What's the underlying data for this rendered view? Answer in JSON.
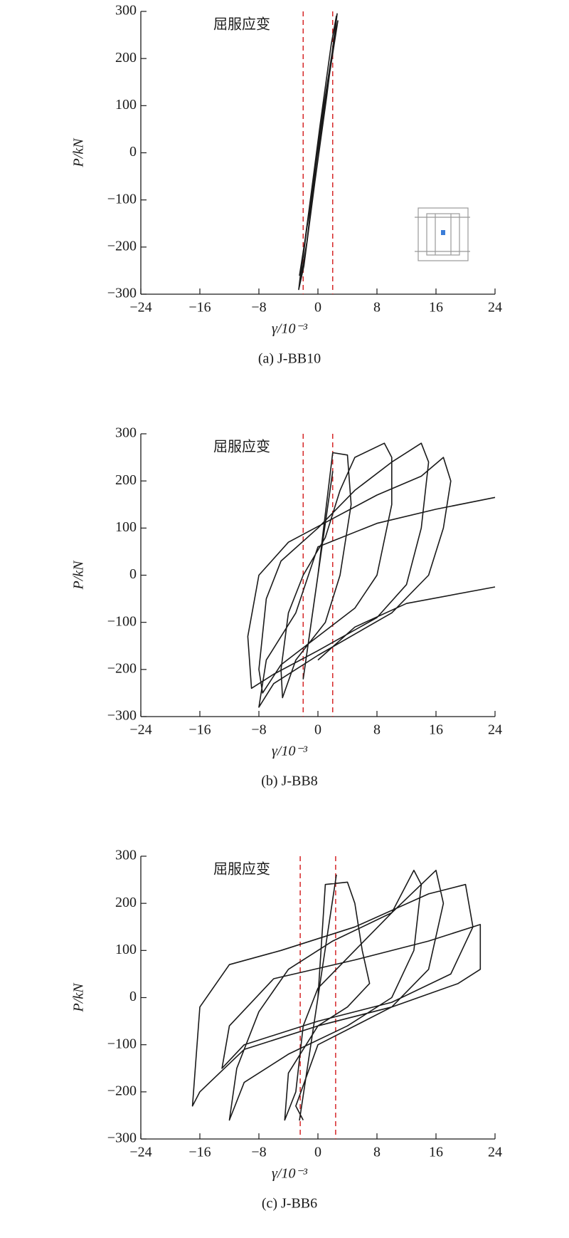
{
  "chart_data": [
    {
      "type": "line",
      "caption": "(a) J-BB10",
      "xlabel": "γ/10⁻³",
      "ylabel": "P/kN",
      "annotation": "屈服应变",
      "yield_lines": [
        -2,
        2
      ],
      "yield_color": "#d62728",
      "xlim": [
        -24,
        24
      ],
      "ylim": [
        -300,
        300
      ],
      "xticks": [
        {
          "value": -24,
          "label": "−24"
        },
        {
          "value": -16,
          "label": "−16"
        },
        {
          "value": -8,
          "label": "−8"
        },
        0,
        8,
        16,
        24
      ],
      "yticks": [
        {
          "value": -300,
          "label": "−300"
        },
        {
          "value": -200,
          "label": "−200"
        },
        {
          "value": -100,
          "label": "−100"
        },
        0,
        100,
        200,
        300
      ],
      "series": [
        {
          "color": "#1a1a1a",
          "x": [
            0,
            1.5,
            2.3,
            2.5,
            1.8,
            0.3,
            -1.2,
            -2.3,
            -2.6,
            -1.9,
            -0.4,
            1.2,
            2.0,
            2.7,
            2.4,
            0.8,
            -0.8,
            -2.2,
            -2.4,
            -1.5,
            0,
            1.6,
            2.6,
            2.2,
            0.5,
            -1.5,
            -2.0,
            -2.5,
            -1.0,
            0.5,
            2.2
          ],
          "values": [
            0,
            160,
            260,
            290,
            230,
            60,
            -120,
            -250,
            -290,
            -240,
            -60,
            120,
            220,
            280,
            250,
            90,
            -80,
            -240,
            -275,
            -190,
            10,
            170,
            295,
            240,
            70,
            -160,
            -220,
            -260,
            -110,
            60,
            240
          ]
        }
      ]
    },
    {
      "type": "line",
      "caption": "(b) J-BB8",
      "xlabel": "γ/10⁻³",
      "ylabel": "P/kN",
      "annotation": "屈服应变",
      "yield_lines": [
        -2,
        2
      ],
      "yield_color": "#d62728",
      "xlim": [
        -24,
        24
      ],
      "ylim": [
        -300,
        300
      ],
      "xticks": [
        {
          "value": -24,
          "label": "−24"
        },
        {
          "value": -16,
          "label": "−16"
        },
        {
          "value": -8,
          "label": "−8"
        },
        0,
        8,
        16,
        24
      ],
      "yticks": [
        {
          "value": -300,
          "label": "−300"
        },
        {
          "value": -200,
          "label": "−200"
        },
        {
          "value": -100,
          "label": "−100"
        },
        0,
        100,
        200,
        300
      ],
      "series": [
        {
          "color": "#1a1a1a",
          "x": [
            0,
            2,
            -2,
            0,
            2,
            4,
            4.5,
            3,
            1,
            -3,
            -4.8,
            -5,
            -4,
            -2,
            1,
            3,
            5,
            9,
            10,
            10,
            8,
            5,
            0,
            -5,
            -7.5,
            -8,
            -7,
            -5,
            0,
            5,
            10,
            14,
            15,
            14,
            12,
            8,
            0,
            -6,
            -9,
            -9.5,
            -8,
            -4,
            2,
            8,
            14,
            17,
            18,
            17,
            15,
            10,
            0,
            -6,
            -8,
            -7,
            -3,
            0,
            8,
            16,
            24,
            null,
            0,
            5,
            12,
            24
          ],
          "values": [
            0,
            220,
            -220,
            0,
            260,
            255,
            150,
            0,
            -100,
            -180,
            -260,
            -200,
            -80,
            0,
            80,
            180,
            250,
            280,
            250,
            150,
            0,
            -70,
            -130,
            -190,
            -250,
            -200,
            -50,
            30,
            100,
            180,
            240,
            280,
            240,
            100,
            -20,
            -90,
            -160,
            -210,
            -240,
            -130,
            0,
            70,
            120,
            170,
            210,
            250,
            200,
            100,
            0,
            -80,
            -170,
            -230,
            -280,
            -180,
            -80,
            60,
            110,
            140,
            165,
            null,
            -180,
            -110,
            -60,
            -25
          ]
        }
      ]
    },
    {
      "type": "line",
      "caption": "(c) J-BB6",
      "xlabel": "γ/10⁻³",
      "ylabel": "P/kN",
      "annotation": "屈服应变",
      "yield_lines": [
        -2.4,
        2.4
      ],
      "yield_color": "#d62728",
      "xlim": [
        -24,
        24
      ],
      "ylim": [
        -300,
        300
      ],
      "xticks": [
        {
          "value": -24,
          "label": "−24"
        },
        {
          "value": -16,
          "label": "−16"
        },
        {
          "value": -8,
          "label": "−8"
        },
        0,
        8,
        16,
        24
      ],
      "yticks": [
        {
          "value": -300,
          "label": "−300"
        },
        {
          "value": -200,
          "label": "−200"
        },
        {
          "value": -100,
          "label": "−100"
        },
        0,
        100,
        200,
        300
      ],
      "series": [
        {
          "color": "#1a1a1a",
          "x": [
            0,
            2.5,
            -2.5,
            0,
            1,
            4,
            5,
            6,
            7,
            4,
            0,
            -4,
            -4.5,
            -3,
            -2,
            0,
            5,
            10,
            13,
            14,
            13,
            10,
            4,
            -4,
            -10,
            -12,
            -11,
            -8,
            -4,
            2,
            10,
            16,
            17,
            15,
            10,
            0,
            -10,
            -16,
            -17,
            -16,
            -12,
            -5,
            5,
            15,
            20,
            21,
            18,
            10,
            0,
            -10,
            -13,
            -12,
            -6,
            5,
            15,
            22,
            22,
            19,
            10,
            0,
            -3,
            -2
          ],
          "values": [
            0,
            260,
            -260,
            0,
            240,
            245,
            200,
            100,
            30,
            -20,
            -60,
            -160,
            -260,
            -200,
            -60,
            20,
            100,
            180,
            270,
            240,
            100,
            0,
            -60,
            -120,
            -180,
            -260,
            -150,
            -30,
            60,
            120,
            180,
            270,
            200,
            60,
            -20,
            -60,
            -110,
            -200,
            -230,
            -20,
            70,
            100,
            150,
            220,
            240,
            150,
            50,
            -10,
            -50,
            -100,
            -150,
            -60,
            40,
            80,
            120,
            155,
            60,
            30,
            -20,
            -100,
            -230,
            -260
          ]
        }
      ]
    }
  ]
}
